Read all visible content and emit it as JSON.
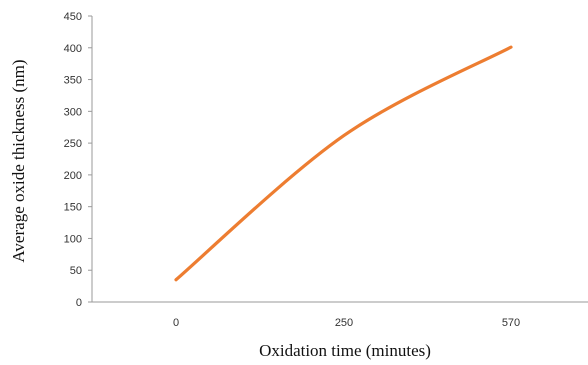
{
  "chart_data": {
    "type": "line",
    "title": "",
    "xlabel": "Oxidation time (minutes)",
    "ylabel": "Average oxide thickness (nm)",
    "x_categories": [
      "0",
      "250",
      "570"
    ],
    "ylim": [
      0,
      450
    ],
    "yticks": [
      0,
      50,
      100,
      150,
      200,
      250,
      300,
      350,
      400,
      450
    ],
    "grid": false,
    "series": [
      {
        "color": "#ED7D31",
        "points": [
          {
            "x": "0",
            "y": 35
          },
          {
            "x": "250",
            "y": 262
          },
          {
            "x": "570",
            "y": 401
          }
        ]
      }
    ]
  }
}
